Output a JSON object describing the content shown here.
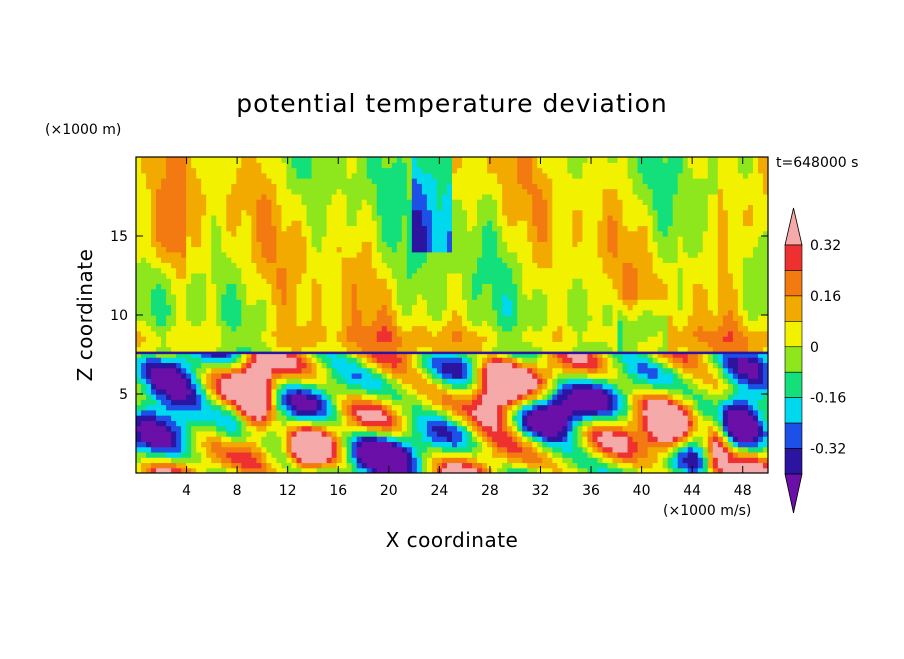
{
  "chart_data": {
    "type": "heatmap",
    "title": "potential temperature deviation",
    "xlabel": "X coordinate",
    "ylabel": "Z coordinate",
    "x_unit": "(×1000 m/s)",
    "y_unit": "(×1000 m)",
    "time_label": "t=648000 s",
    "xlim": [
      0,
      50
    ],
    "ylim": [
      0,
      20
    ],
    "x_ticks": [
      4,
      8,
      12,
      16,
      20,
      24,
      28,
      32,
      36,
      40,
      44,
      48
    ],
    "y_ticks": [
      5,
      10,
      15
    ],
    "colorbar_labels": [
      0.32,
      0.16,
      0,
      -0.16,
      -0.32
    ],
    "contour_levels": [
      -0.4,
      -0.32,
      -0.24,
      -0.16,
      -0.08,
      0,
      0.08,
      0.16,
      0.24,
      0.32,
      0.4
    ],
    "colors": [
      "#6a0fa8",
      "#2a14a0",
      "#1c50e6",
      "#00d8ee",
      "#13e07a",
      "#8ee61c",
      "#f2f200",
      "#f2aa00",
      "#f27a10",
      "#ef3030",
      "#f5a9a9"
    ],
    "regions": [
      {
        "description": "upper layer",
        "z_range": [
          7.5,
          20
        ],
        "dominant_range": [
          -0.16,
          0.16
        ]
      },
      {
        "description": "lower layer",
        "z_range": [
          0,
          7.5
        ],
        "dominant_range": [
          -0.4,
          0.4
        ]
      }
    ]
  }
}
